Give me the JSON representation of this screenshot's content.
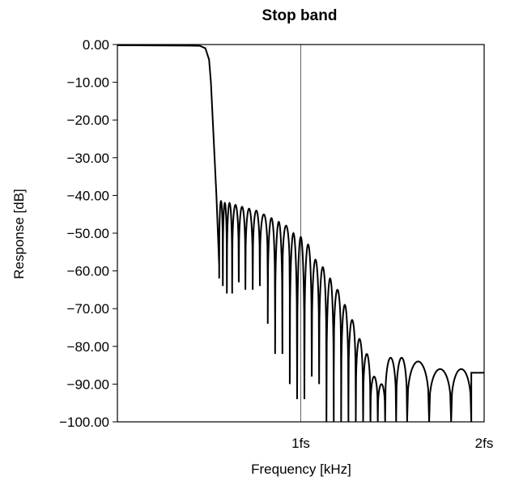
{
  "chart_data": {
    "type": "line",
    "title": "Stop band",
    "xlabel": "Frequency [kHz]",
    "ylabel": "Response [dB]",
    "xlim": [
      0,
      2
    ],
    "ylim": [
      -100,
      0
    ],
    "grid": true,
    "y_ticks": [
      {
        "value": 0,
        "label": "0.00"
      },
      {
        "value": -10,
        "label": "−10.00"
      },
      {
        "value": -20,
        "label": "−20.00"
      },
      {
        "value": -30,
        "label": "−30.00"
      },
      {
        "value": -40,
        "label": "−40.00"
      },
      {
        "value": -50,
        "label": "−50.00"
      },
      {
        "value": -60,
        "label": "−60.00"
      },
      {
        "value": -70,
        "label": "−70.00"
      },
      {
        "value": -80,
        "label": "−80.00"
      },
      {
        "value": -90,
        "label": "−90.00"
      },
      {
        "value": -100,
        "label": "−100.00"
      }
    ],
    "x_ticks": [
      {
        "value": 1,
        "label": "1fs"
      },
      {
        "value": 2,
        "label": "2fs"
      }
    ],
    "passband": [
      [
        0.0,
        -0.2
      ],
      [
        0.2,
        -0.25
      ],
      [
        0.4,
        -0.3
      ],
      [
        0.45,
        -0.35
      ],
      [
        0.48,
        -1.0
      ],
      [
        0.5,
        -4.0
      ],
      [
        0.51,
        -10.0
      ],
      [
        0.52,
        -20.0
      ],
      [
        0.53,
        -30.0
      ],
      [
        0.54,
        -40.0
      ],
      [
        0.555,
        -58.5
      ]
    ],
    "stopband_lobes": [
      {
        "start": 0.555,
        "end": 0.575,
        "peak": -41.5,
        "null": -62
      },
      {
        "start": 0.575,
        "end": 0.597,
        "peak": -42.0,
        "null": -64
      },
      {
        "start": 0.597,
        "end": 0.626,
        "peak": -42.0,
        "null": -66
      },
      {
        "start": 0.626,
        "end": 0.662,
        "peak": -42.5,
        "null": -63
      },
      {
        "start": 0.662,
        "end": 0.698,
        "peak": -43.0,
        "null": -63
      },
      {
        "start": 0.698,
        "end": 0.738,
        "peak": -43.5,
        "null": -65
      },
      {
        "start": 0.738,
        "end": 0.777,
        "peak": -44.0,
        "null": -64
      },
      {
        "start": 0.777,
        "end": 0.82,
        "peak": -45.0,
        "null": -63
      },
      {
        "start": 0.82,
        "end": 0.86,
        "peak": -46.0,
        "null": -74
      },
      {
        "start": 0.86,
        "end": 0.9,
        "peak": -47.0,
        "null": -82
      },
      {
        "start": 0.9,
        "end": 0.94,
        "peak": -48.0,
        "null": -66
      },
      {
        "start": 0.94,
        "end": 0.98,
        "peak": -50.0,
        "null": -90
      },
      {
        "start": 0.98,
        "end": 1.02,
        "peak": -51.0,
        "null": -94
      },
      {
        "start": 1.02,
        "end": 1.06,
        "peak": -53.0,
        "null": -88
      },
      {
        "start": 1.06,
        "end": 1.1,
        "peak": -57.0,
        "null": -88
      },
      {
        "start": 1.1,
        "end": 1.14,
        "peak": -59.0,
        "null": -90
      },
      {
        "start": 1.14,
        "end": 1.18,
        "peak": -62.0,
        "null": -100
      },
      {
        "start": 1.18,
        "end": 1.22,
        "peak": -65.0,
        "null": -88
      },
      {
        "start": 1.22,
        "end": 1.26,
        "peak": -69.0,
        "null": -100
      },
      {
        "start": 1.26,
        "end": 1.3,
        "peak": -73.0,
        "null": -96
      },
      {
        "start": 1.3,
        "end": 1.34,
        "peak": -78.0,
        "null": -100
      },
      {
        "start": 1.34,
        "end": 1.38,
        "peak": -82.0,
        "null": -100
      },
      {
        "start": 1.38,
        "end": 1.42,
        "peak": -88.0,
        "null": -100
      },
      {
        "start": 1.42,
        "end": 1.46,
        "peak": -90.0,
        "null": -100
      },
      {
        "start": 1.46,
        "end": 1.52,
        "peak": -83.0,
        "null": -100
      },
      {
        "start": 1.52,
        "end": 1.58,
        "peak": -83.0,
        "null": -100
      },
      {
        "start": 1.58,
        "end": 1.7,
        "peak": -84.0,
        "null": -100
      },
      {
        "start": 1.7,
        "end": 1.82,
        "peak": -86.0,
        "null": -100
      },
      {
        "start": 1.82,
        "end": 1.93,
        "peak": -86.0,
        "null": -100
      },
      {
        "start": 1.93,
        "end": 2.0,
        "peak": -87.0,
        "null": -87
      }
    ]
  }
}
